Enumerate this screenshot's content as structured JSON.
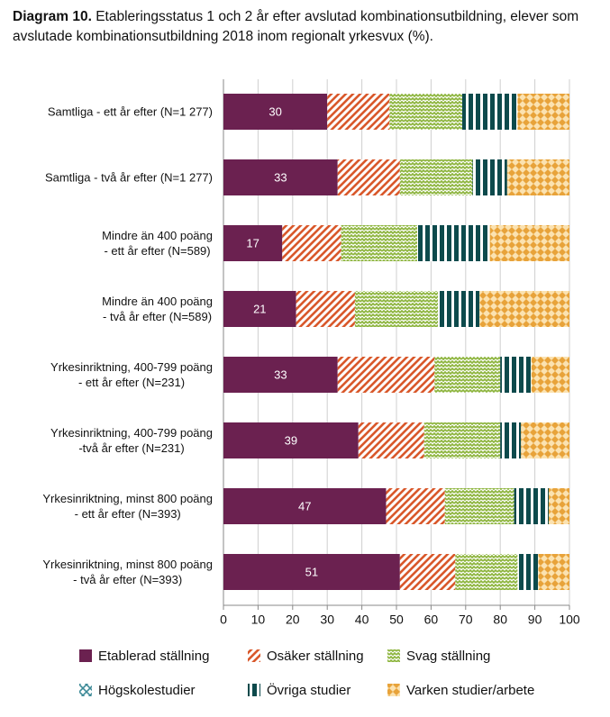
{
  "chart_data": {
    "type": "stacked-bar-horizontal",
    "title_label": "Diagram 10.",
    "title": "Etableringsstatus 1 och 2 år efter avslutad kombinationsutbildning, elever som avslutade kombinationsutbildning 2018 inom regionalt yrkesvux (%).",
    "categories": [
      "Samtliga - ett år efter (N=1 277)",
      "Samtliga - två år efter (N=1 277)",
      "Mindre än 400 poäng\n- ett år efter (N=589)",
      "Mindre än 400 poäng\n- två år efter (N=589)",
      "Yrkesinriktning, 400-799 poäng\n- ett år efter (N=231)",
      "Yrkesinriktning, 400-799 poäng\n-två år efter (N=231)",
      "Yrkesinriktning, minst 800 poäng\n- ett år efter (N=393)",
      "Yrkesinriktning, minst 800 poäng\n- två år efter (N=393)"
    ],
    "series": [
      {
        "name": "Etablerad ställning",
        "color": "#6b2150",
        "pattern": "solid",
        "show_labels": true,
        "values": [
          30,
          33,
          17,
          21,
          33,
          39,
          47,
          51
        ]
      },
      {
        "name": "Osäker ställning",
        "color": "#d9582b",
        "pattern": "diagonal",
        "values": [
          18,
          18,
          17,
          17,
          28,
          19,
          17,
          16
        ]
      },
      {
        "name": "Svag ställning",
        "color": "#8cb43c",
        "pattern": "zigzag",
        "values": [
          21,
          21,
          22,
          24,
          19,
          22,
          20,
          18
        ]
      },
      {
        "name": "Högskolestudier",
        "color": "#3d8a97",
        "pattern": "cross",
        "values": [
          0,
          0,
          0,
          0,
          0,
          0,
          0,
          0
        ]
      },
      {
        "name": "Övriga studier",
        "color": "#0d4a4c",
        "pattern": "vertical",
        "values": [
          16,
          10,
          21,
          12,
          9,
          6,
          10,
          6
        ]
      },
      {
        "name": "Varken studier/arbete",
        "color": "#e8a33a",
        "pattern": "checks",
        "values": [
          15,
          18,
          23,
          26,
          11,
          14,
          6,
          9
        ]
      }
    ],
    "xlim": [
      0,
      100
    ],
    "xticks": [
      0,
      10,
      20,
      30,
      40,
      50,
      60,
      70,
      80,
      90,
      100
    ],
    "grid": true
  }
}
